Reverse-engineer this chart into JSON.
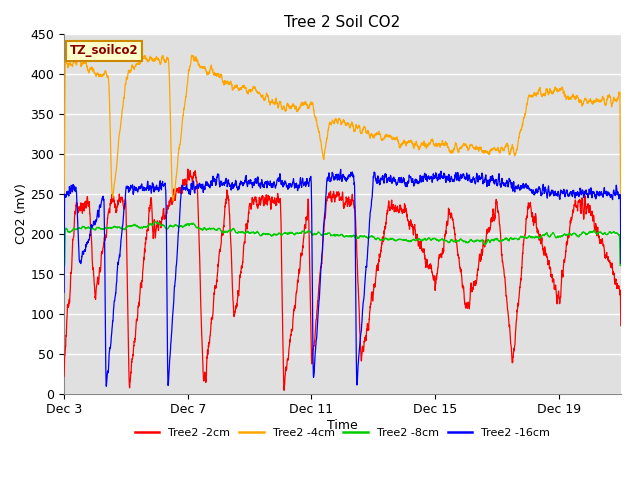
{
  "title": "Tree 2 Soil CO2",
  "xlabel": "Time",
  "ylabel": "CO2 (mV)",
  "ylim": [
    0,
    450
  ],
  "background_color": "#ffffff",
  "plot_bg_color": "#e0e0e0",
  "legend_label": "TZ_soilco2",
  "legend_box_bg": "#ffffcc",
  "legend_box_edge": "#cc8800",
  "series_colors": {
    "2cm": "#ff0000",
    "4cm": "#ffa500",
    "8cm": "#00cc00",
    "16cm": "#0000ff"
  },
  "legend_entries": [
    {
      "label": "Tree2 -2cm",
      "color": "#ff0000"
    },
    {
      "label": "Tree2 -4cm",
      "color": "#ffa500"
    },
    {
      "label": "Tree2 -8cm",
      "color": "#00cc00"
    },
    {
      "label": "Tree2 -16cm",
      "color": "#0000ff"
    }
  ],
  "x_tick_labels": [
    "Dec 3",
    "Dec 7",
    "Dec 11",
    "Dec 15",
    "Dec 19"
  ],
  "x_tick_positions": [
    3,
    7,
    11,
    15,
    19
  ],
  "x_range": [
    3,
    21
  ],
  "yticks": [
    0,
    50,
    100,
    150,
    200,
    250,
    300,
    350,
    400,
    450
  ]
}
